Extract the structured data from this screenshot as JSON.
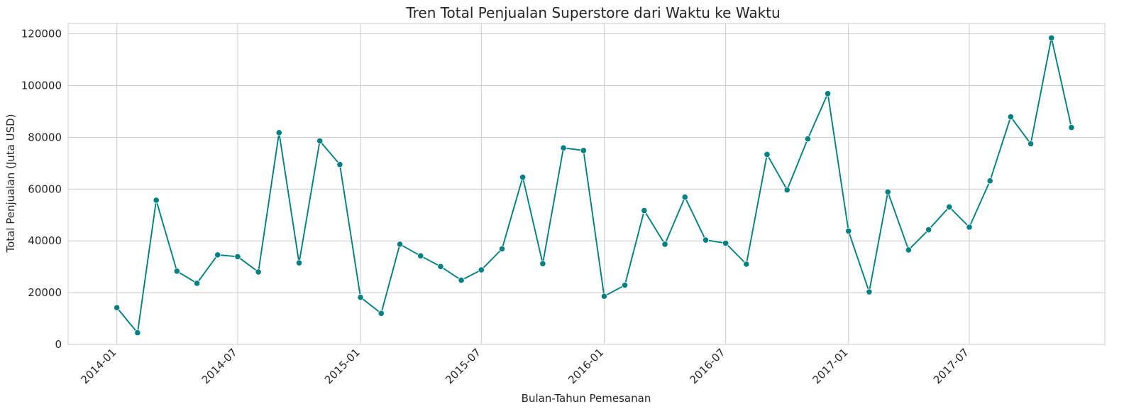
{
  "chart_data": {
    "type": "line",
    "title": "Tren Total Penjualan Superstore dari Waktu ke Waktu",
    "xlabel": "Bulan-Tahun Pemesanan",
    "ylabel": "Total Penjualan (Juta USD)",
    "ylim": [
      0,
      124000
    ],
    "xlim": [
      "2013-10-20",
      "2018-01-20"
    ],
    "grid": true,
    "line_color": "#008080",
    "x_ticks": [
      "2014-01",
      "2014-07",
      "2015-01",
      "2015-07",
      "2016-01",
      "2016-07",
      "2017-01",
      "2017-07"
    ],
    "y_ticks": [
      0,
      20000,
      40000,
      60000,
      80000,
      100000,
      120000
    ],
    "series": [
      {
        "x": [
          "2014-01",
          "2014-02",
          "2014-03",
          "2014-04",
          "2014-05",
          "2014-06",
          "2014-07",
          "2014-08",
          "2014-09",
          "2014-10",
          "2014-11",
          "2014-12",
          "2015-01",
          "2015-02",
          "2015-03",
          "2015-04",
          "2015-05",
          "2015-06",
          "2015-07",
          "2015-08",
          "2015-09",
          "2015-10",
          "2015-11",
          "2015-12",
          "2016-01",
          "2016-02",
          "2016-03",
          "2016-04",
          "2016-05",
          "2016-06",
          "2016-07",
          "2016-08",
          "2016-09",
          "2016-10",
          "2016-11",
          "2016-12",
          "2017-01",
          "2017-02",
          "2017-03",
          "2017-04",
          "2017-05",
          "2017-06",
          "2017-07",
          "2017-08",
          "2017-09",
          "2017-10",
          "2017-11",
          "2017-12"
        ],
        "values": [
          14200,
          4500,
          55700,
          28300,
          23600,
          34600,
          33900,
          28000,
          81800,
          31500,
          78600,
          69500,
          18200,
          12000,
          38700,
          34200,
          30100,
          24800,
          28800,
          36900,
          64600,
          31200,
          75900,
          74900,
          18600,
          22900,
          51700,
          38700,
          56900,
          40300,
          39100,
          31000,
          73400,
          59700,
          79400,
          96900,
          43800,
          20300,
          58900,
          36500,
          44300,
          53100,
          45300,
          63200,
          87900,
          77500,
          118400,
          83800
        ]
      }
    ]
  }
}
